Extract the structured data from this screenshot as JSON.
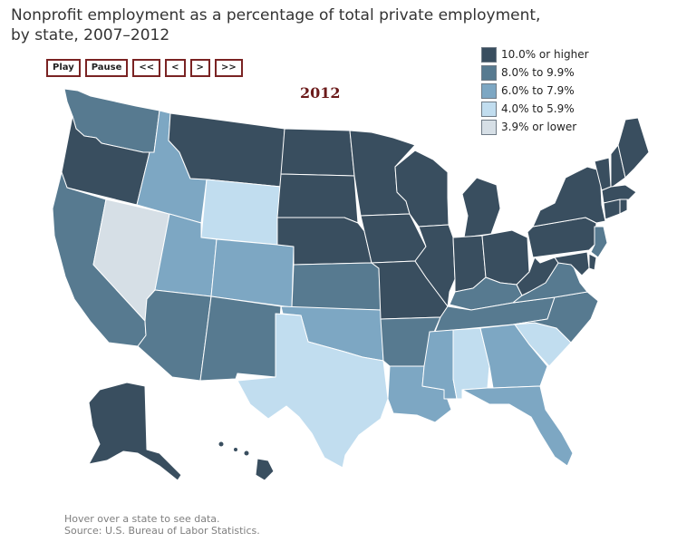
{
  "title": {
    "line1": "Nonprofit employment as a percentage of total private employment,",
    "line2": "by state, 2007–2012"
  },
  "controls": {
    "play": "Play",
    "pause": "Pause",
    "first": "<<",
    "prev": "<",
    "next": ">",
    "last": ">>"
  },
  "year": "2012",
  "legend": [
    {
      "label": "10.0% or higher",
      "color": "#394e5f"
    },
    {
      "label": "8.0% to 9.9%",
      "color": "#577a90"
    },
    {
      "label": "6.0% to 7.9%",
      "color": "#7da7c3"
    },
    {
      "label": "4.0% to 5.9%",
      "color": "#c1ddef"
    },
    {
      "label": "3.9% or lower",
      "color": "#d6dfe6"
    }
  ],
  "states": {
    "WA": 1,
    "OR": 0,
    "CA": 1,
    "NV": 4,
    "ID": 2,
    "MT": 0,
    "WY": 3,
    "UT": 2,
    "AZ": 1,
    "CO": 2,
    "NM": 1,
    "ND": 0,
    "SD": 0,
    "NE": 0,
    "KS": 1,
    "OK": 2,
    "TX": 3,
    "MN": 0,
    "IA": 0,
    "MO": 0,
    "AR": 1,
    "LA": 2,
    "WI": 0,
    "IL": 0,
    "MI": 0,
    "IN": 0,
    "OH": 0,
    "KY": 1,
    "TN": 1,
    "MS": 2,
    "AL": 3,
    "GA": 2,
    "FL": 2,
    "SC": 3,
    "NC": 1,
    "VA": 1,
    "WV": 0,
    "PA": 0,
    "NY": 0,
    "VT": 0,
    "NH": 0,
    "ME": 0,
    "MA": 0,
    "CT": 0,
    "RI": 0,
    "NJ": 1,
    "DE": 0,
    "MD": 0,
    "AK": 0,
    "HI": 0
  },
  "footer": {
    "hint": "Hover over a state to see data.",
    "source": "Source: U.S. Bureau of Labor Statistics."
  }
}
